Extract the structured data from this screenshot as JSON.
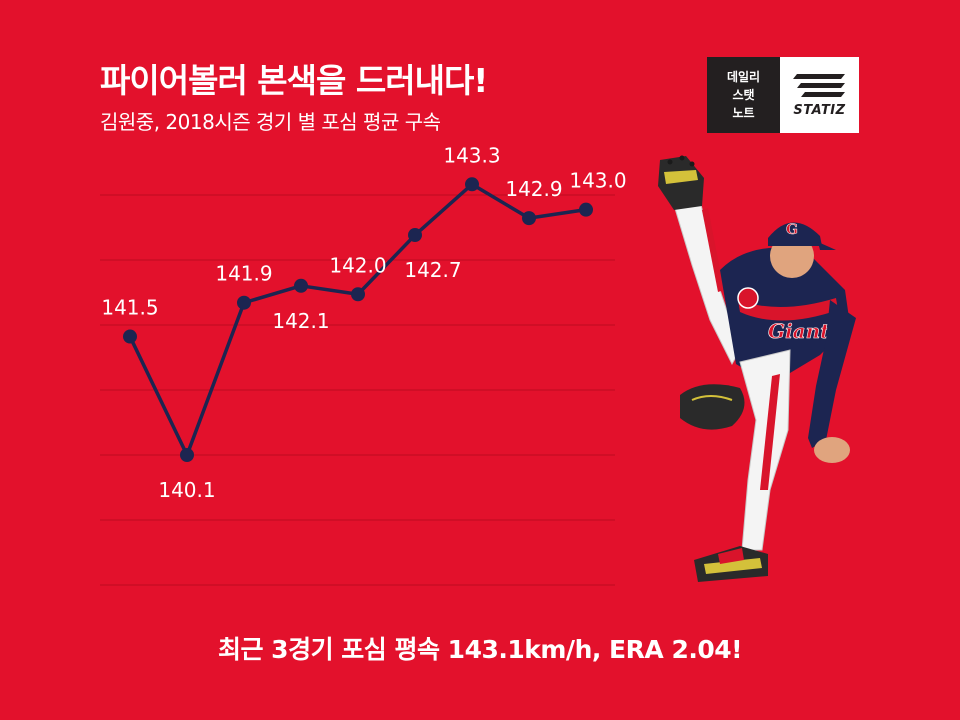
{
  "header": {
    "title": "파이어볼러 본색을 드러내다!",
    "subtitle": "김원중, 2018시즌 경기 별 포심 평균 구속"
  },
  "logo": {
    "line1": "데일리",
    "line2": "스탯",
    "line3": "노트",
    "brand": "STATIZ"
  },
  "chart_data": {
    "type": "line",
    "x": [
      1,
      2,
      3,
      4,
      5,
      6,
      7,
      8,
      9
    ],
    "values": [
      141.5,
      140.1,
      141.9,
      142.1,
      142.0,
      142.7,
      143.3,
      142.9,
      143.0
    ],
    "data_labels": [
      "141.5",
      "140.1",
      "141.9",
      "142.1",
      "142.0",
      "142.7",
      "143.3",
      "142.9",
      "143.0"
    ],
    "title": "",
    "xlabel": "",
    "ylabel": "",
    "grid": true,
    "line_color": "#1c2551",
    "background": "#e3112c"
  },
  "footer": {
    "text": "최근 3경기 포심 평속 143.1km/h, ERA 2.04!"
  },
  "colors": {
    "background": "#e3112c",
    "line": "#1c2551",
    "text": "#ffffff",
    "badge_dark": "#231f20"
  }
}
